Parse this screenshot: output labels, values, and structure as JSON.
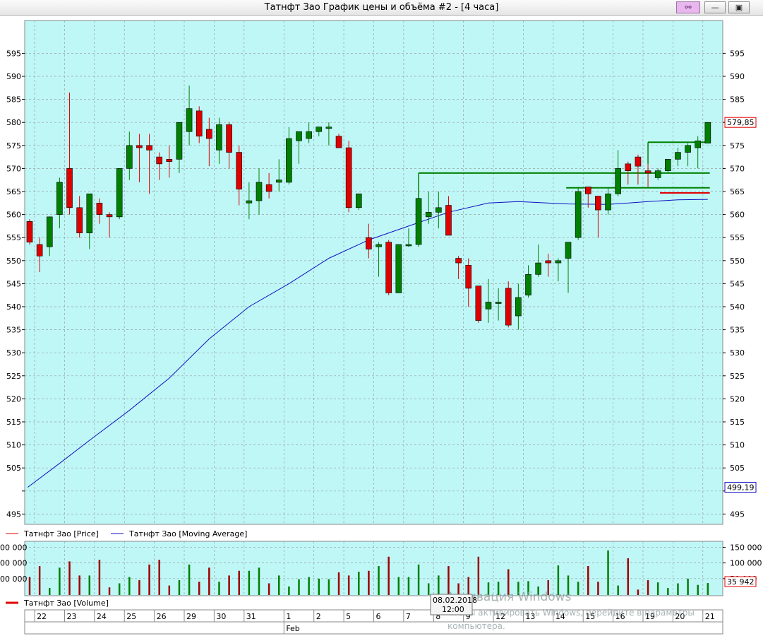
{
  "window": {
    "title": "Татнфт Зао График цены и объёма #2 - [4 часа]",
    "buttons": [
      "link",
      "minimize",
      "maximize"
    ]
  },
  "colors": {
    "background": "#bff7f7",
    "up": "#008000",
    "down": "#e00000",
    "moving_average": "#1010c0",
    "grid": "#9aa0a0",
    "level_line": "#008000"
  },
  "chart_data": [
    {
      "type": "candlestick",
      "ylim": [
        490,
        600
      ],
      "y_ticks": [
        495,
        500,
        505,
        510,
        515,
        520,
        525,
        530,
        535,
        540,
        545,
        550,
        555,
        560,
        565,
        570,
        575,
        580,
        585,
        590,
        595
      ],
      "y_tick_labels": [
        "495",
        "",
        "505",
        "510",
        "515",
        "520",
        "525",
        "530",
        "535",
        "540",
        "545",
        "550",
        "555",
        "560",
        "565",
        "570",
        "575",
        "580",
        "585",
        "590",
        "595"
      ],
      "last_price_label": "579,85",
      "ma_start_label": "499,19",
      "x_date_labels": [
        "22",
        "23",
        "24",
        "25",
        "26",
        "29",
        "30",
        "31",
        "1",
        "2",
        "5",
        "6",
        "7",
        "8",
        "9",
        "12",
        "13",
        "14",
        "15",
        "16",
        "19",
        "20",
        "21"
      ],
      "month_labels": [
        "Feb"
      ],
      "crosshair_label": [
        "08.02.2018",
        "12:00"
      ],
      "legend": [
        "Татнфт Зао [Price]",
        "Татнфт Зао [Moving Average]"
      ],
      "candles": [
        {
          "o": 558.5,
          "h": 559,
          "l": 553.5,
          "c": 554
        },
        {
          "o": 553.5,
          "h": 555,
          "l": 547.5,
          "c": 551
        },
        {
          "o": 553,
          "h": 559.5,
          "l": 551,
          "c": 559.5
        },
        {
          "o": 560,
          "h": 568,
          "l": 557,
          "c": 567
        },
        {
          "o": 570,
          "h": 586.5,
          "l": 560,
          "c": 561.5
        },
        {
          "o": 561.5,
          "h": 564,
          "l": 555,
          "c": 556
        },
        {
          "o": 556,
          "h": 564.5,
          "l": 552.5,
          "c": 564.5
        },
        {
          "o": 562.5,
          "h": 563.5,
          "l": 558,
          "c": 560
        },
        {
          "o": 560,
          "h": 560.5,
          "l": 555,
          "c": 559.5
        },
        {
          "o": 559.5,
          "h": 570,
          "l": 559,
          "c": 570
        },
        {
          "o": 570,
          "h": 578,
          "l": 567.5,
          "c": 575
        },
        {
          "o": 575,
          "h": 577.5,
          "l": 567,
          "c": 574.5
        },
        {
          "o": 575,
          "h": 577.5,
          "l": 564.5,
          "c": 574
        },
        {
          "o": 572.5,
          "h": 573.5,
          "l": 567.5,
          "c": 571
        },
        {
          "o": 572,
          "h": 575,
          "l": 568,
          "c": 571.5
        },
        {
          "o": 572,
          "h": 580,
          "l": 569,
          "c": 580
        },
        {
          "o": 578,
          "h": 588,
          "l": 575,
          "c": 583
        },
        {
          "o": 582.5,
          "h": 583.5,
          "l": 575.5,
          "c": 577
        },
        {
          "o": 578.5,
          "h": 581,
          "l": 570.5,
          "c": 576.5
        },
        {
          "o": 574,
          "h": 581,
          "l": 571,
          "c": 579.5
        },
        {
          "o": 579.5,
          "h": 580,
          "l": 570,
          "c": 573.5
        },
        {
          "o": 573.5,
          "h": 575,
          "l": 562,
          "c": 565.5
        },
        {
          "o": 562.5,
          "h": 567,
          "l": 559,
          "c": 563
        },
        {
          "o": 563,
          "h": 570,
          "l": 560,
          "c": 567
        },
        {
          "o": 566.5,
          "h": 569,
          "l": 563.5,
          "c": 565
        },
        {
          "o": 567,
          "h": 572,
          "l": 565,
          "c": 567.5
        },
        {
          "o": 567,
          "h": 579,
          "l": 566.5,
          "c": 576.5
        },
        {
          "o": 576,
          "h": 578,
          "l": 571,
          "c": 578
        },
        {
          "o": 576.5,
          "h": 580,
          "l": 575.5,
          "c": 578
        },
        {
          "o": 578,
          "h": 579,
          "l": 577,
          "c": 579
        },
        {
          "o": 579,
          "h": 580,
          "l": 575,
          "c": 579
        },
        {
          "o": 577,
          "h": 577.5,
          "l": 574.5,
          "c": 574.5
        },
        {
          "o": 574.5,
          "h": 576,
          "l": 560.5,
          "c": 561.5
        },
        {
          "o": 561.5,
          "h": 564.5,
          "l": 561,
          "c": 564.5
        },
        {
          "o": 555,
          "h": 558,
          "l": 550.5,
          "c": 552.5
        },
        {
          "o": 553,
          "h": 554,
          "l": 546.5,
          "c": 553.5
        },
        {
          "o": 554,
          "h": 554.5,
          "l": 542.5,
          "c": 543
        },
        {
          "o": 543,
          "h": 553.5,
          "l": 543,
          "c": 553.5
        },
        {
          "o": 553.5,
          "h": 557,
          "l": 553,
          "c": 553.5
        },
        {
          "o": 553.5,
          "h": 563.5,
          "l": 553,
          "c": 563.5
        },
        {
          "o": 559.5,
          "h": 565,
          "l": 558,
          "c": 560.5
        },
        {
          "o": 560.5,
          "h": 565,
          "l": 557,
          "c": 561.5
        },
        {
          "o": 562,
          "h": 564,
          "l": 555.5,
          "c": 555.5
        },
        {
          "o": 550.5,
          "h": 551,
          "l": 546,
          "c": 549.5
        },
        {
          "o": 549,
          "h": 550.5,
          "l": 540,
          "c": 544
        },
        {
          "o": 544.5,
          "h": 544.5,
          "l": 536.5,
          "c": 537
        },
        {
          "o": 539.5,
          "h": 546,
          "l": 536.5,
          "c": 541
        },
        {
          "o": 541,
          "h": 544,
          "l": 537,
          "c": 541
        },
        {
          "o": 544,
          "h": 545.5,
          "l": 535.5,
          "c": 536
        },
        {
          "o": 538,
          "h": 545,
          "l": 535,
          "c": 542
        },
        {
          "o": 542.5,
          "h": 549,
          "l": 542,
          "c": 547
        },
        {
          "o": 547,
          "h": 553.5,
          "l": 546.5,
          "c": 549.5
        },
        {
          "o": 550,
          "h": 551.5,
          "l": 546.5,
          "c": 549.5
        },
        {
          "o": 549.5,
          "h": 550.5,
          "l": 545.5,
          "c": 550
        },
        {
          "o": 550.5,
          "h": 554,
          "l": 543,
          "c": 554
        },
        {
          "o": 555,
          "h": 566,
          "l": 554.5,
          "c": 565
        },
        {
          "o": 566,
          "h": 566,
          "l": 561.5,
          "c": 564.5
        },
        {
          "o": 564,
          "h": 564,
          "l": 555,
          "c": 561
        },
        {
          "o": 561,
          "h": 566,
          "l": 560,
          "c": 564.5
        },
        {
          "o": 564.5,
          "h": 574,
          "l": 564,
          "c": 570
        },
        {
          "o": 571,
          "h": 571.5,
          "l": 566.5,
          "c": 569.5
        },
        {
          "o": 572.5,
          "h": 573,
          "l": 566.5,
          "c": 570.5
        },
        {
          "o": 569.5,
          "h": 571,
          "l": 566,
          "c": 569
        },
        {
          "o": 568,
          "h": 570,
          "l": 567.5,
          "c": 569.5
        },
        {
          "o": 569.5,
          "h": 572,
          "l": 569,
          "c": 572
        },
        {
          "o": 572,
          "h": 574.5,
          "l": 570.5,
          "c": 573.5
        },
        {
          "o": 573.5,
          "h": 575.5,
          "l": 570.5,
          "c": 575
        },
        {
          "o": 574.5,
          "h": 577,
          "l": 570,
          "c": 576
        },
        {
          "o": 575.5,
          "h": 580,
          "l": 575.5,
          "c": 580
        }
      ],
      "moving_average": [
        {
          "i": -0.2,
          "v": 500.8
        },
        {
          "i": 3,
          "v": 506
        },
        {
          "i": 6,
          "v": 511
        },
        {
          "i": 10,
          "v": 517.5
        },
        {
          "i": 14,
          "v": 524.5
        },
        {
          "i": 18,
          "v": 533
        },
        {
          "i": 22,
          "v": 540
        },
        {
          "i": 26,
          "v": 545
        },
        {
          "i": 30,
          "v": 550.5
        },
        {
          "i": 34,
          "v": 554.5
        },
        {
          "i": 38,
          "v": 557.5
        },
        {
          "i": 42,
          "v": 560.5
        },
        {
          "i": 46,
          "v": 562.5
        },
        {
          "i": 49,
          "v": 562.8
        },
        {
          "i": 54,
          "v": 562.3
        },
        {
          "i": 58,
          "v": 562.2
        },
        {
          "i": 62,
          "v": 562.8
        },
        {
          "i": 65,
          "v": 563.2
        },
        {
          "i": 68,
          "v": 563.3
        }
      ],
      "level_lines": [
        {
          "from": 39,
          "to": 68.2,
          "v": 569,
          "color": "#008000"
        },
        {
          "from": 53.8,
          "to": 68.2,
          "v": 565.8,
          "color": "#008000"
        },
        {
          "from": 62,
          "to": 68.2,
          "v": 575.7,
          "color": "#008000"
        },
        {
          "from": 63.2,
          "to": 68.2,
          "v": 564.7,
          "color": "#e00000"
        }
      ]
    },
    {
      "type": "bar",
      "name": "volume",
      "ylim": [
        0,
        160000
      ],
      "y_ticks": [
        50000,
        100000,
        150000
      ],
      "y_tick_labels": [
        "50 000",
        "100 000",
        "150 000"
      ],
      "left_tick_labels": [
        "00 000",
        "00 000",
        "00 000"
      ],
      "last_volume_label": "35 942",
      "legend": [
        "Татнфт Зао [Volume]"
      ],
      "values": [
        55000,
        90000,
        20000,
        85000,
        105000,
        60000,
        60000,
        110000,
        22000,
        35000,
        55000,
        45000,
        95000,
        110000,
        28000,
        45000,
        95000,
        40000,
        85000,
        40000,
        60000,
        75000,
        75000,
        85000,
        35000,
        60000,
        25000,
        48000,
        55000,
        50000,
        48000,
        70000,
        60000,
        72000,
        75000,
        90000,
        120000,
        55000,
        55000,
        95000,
        35000,
        60000,
        90000,
        35000,
        55000,
        120000,
        38000,
        40000,
        80000,
        40000,
        42000,
        25000,
        45000,
        92000,
        60000,
        40000,
        90000,
        40000,
        140000,
        28000,
        115000,
        15000,
        45000,
        38000,
        20000,
        35000,
        50000,
        30000,
        36000
      ]
    }
  ],
  "watermark": [
    "Активация Windows",
    "Чтобы активировать Windows, перейдите в параметры",
    "компьютера."
  ]
}
